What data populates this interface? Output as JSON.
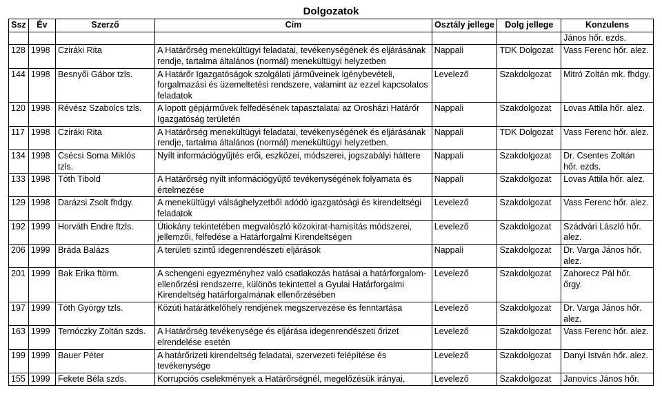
{
  "title": "Dolgozatok",
  "columns": [
    "Ssz",
    "Év",
    "Szerző",
    "Cím",
    "Osztály jellege",
    "Dolg jellege",
    "Konzulens"
  ],
  "top_konzulens": "János hőr. ezds.",
  "rows": [
    {
      "ssz": "128",
      "ev": "1998",
      "szerzo": "Cziráki Rita",
      "cim": "A Határőrség menekültügyi feladatai, tevékenységének és eljárásának rendje, tartalma általános (normál) menekültügyi helyzetben",
      "osztaly": "Nappali",
      "dolg": "TDK Dolgozat",
      "konzulens": "Vass Ferenc hőr. alez."
    },
    {
      "ssz": "144",
      "ev": "1998",
      "szerzo": "Besnyői Gábor tzls.",
      "cim": "A Határőr Igazgatóságok szolgálati járműveinek igénybevételi, forgalmazási és üzemeltetési rendszere, valamint az ezzel kapcsolatos feladatok",
      "osztaly": "Levelező",
      "dolg": "Szakdolgozat",
      "konzulens": "Mitró Zoltán mk. fhdgy."
    },
    {
      "ssz": "120",
      "ev": "1998",
      "szerzo": "Révész Szabolcs tzls.",
      "cim": "A lopott gépjárművek felfedésének tapasztalatai az Orosházi Határőr Igazgatóság területén",
      "osztaly": "Nappali",
      "dolg": "Szakdolgozat",
      "konzulens": "Lovas Attila hőr. alez."
    },
    {
      "ssz": "117",
      "ev": "1998",
      "szerzo": "Cziráki Rita",
      "cim": "A Határőrség menekültügyi feladatai, tevékenységének és eljárásának rendje, tartalma általános (normál) menekültügyi helyzetben.",
      "osztaly": "Nappali",
      "dolg": "TDK Dolgozat",
      "konzulens": "Vass Ferenc hőr. alez."
    },
    {
      "ssz": "134",
      "ev": "1998",
      "szerzo": "Csécsi Soma Miklós tzls.",
      "cim": "Nyílt információgyűjtés erői, eszközei, módszerei, jogszabályi háttere",
      "osztaly": "Nappali",
      "dolg": "Szakdolgozat",
      "konzulens": "Dr. Csentes Zoltán hőr. ezds."
    },
    {
      "ssz": "133",
      "ev": "1998",
      "szerzo": "Tóth Tibold",
      "cim": "A Határőrség nyílt információgyűjtő tevékenységének folyamata és értelmezése",
      "osztaly": "Nappali",
      "dolg": "Szakdolgozat",
      "konzulens": "Lovas Attila hőr. alez."
    },
    {
      "ssz": "129",
      "ev": "1998",
      "szerzo": "Darázsi Zsolt fhdgy.",
      "cim": "A menekültügyi válsághelyzetből adódó igazgatósági és kirendeltségi feladatok",
      "osztaly": "Levelező",
      "dolg": "Szakdolgozat",
      "konzulens": "Vass Ferenc hőr. alez."
    },
    {
      "ssz": "192",
      "ev": "1999",
      "szerzo": "Horváth Endre ftzls.",
      "cim": "Útiokány tekintetében megvalószló közokirat-hamisítás módszerei, jellemzői, felfedése a Határforgalmi Kirendeltségen",
      "osztaly": "Levelező",
      "dolg": "Szakdolgozat",
      "konzulens": "Szádvári László hőr. alez."
    },
    {
      "ssz": "206",
      "ev": "1999",
      "szerzo": "Bráda Balázs",
      "cim": "A területi szintű idegenrendészeti eljárások",
      "osztaly": "Nappali",
      "dolg": "Szakdolgozat",
      "konzulens": "Dr. Varga János hőr. alez."
    },
    {
      "ssz": "201",
      "ev": "1999",
      "szerzo": "Bak Erika ftörm.",
      "cim": "A schengeni egyezményhez való csatlakozás hatásai a határforgalom-ellenőrzési rendszerre, különös tekintettel a Gyulai Határforgalmi Kirendeltség határforgalmának ellenőrzésében",
      "osztaly": "Levelező",
      "dolg": "Szakdolgozat",
      "konzulens": "Zahorecz Pál hőr. őrgy."
    },
    {
      "ssz": "197",
      "ev": "1999",
      "szerzo": "Tóth György tzls.",
      "cim": "Közúti határátkelőhely rendjének megszervezése és fenntartása",
      "osztaly": "Levelező",
      "dolg": "Szakdolgozat",
      "konzulens": "Dr. Varga János hőr. alez."
    },
    {
      "ssz": "163",
      "ev": "1999",
      "szerzo": "Ternóczky Zoltán szds.",
      "cim": "A Határőrség tevékenysége és eljárása idegenrendészeti őrizet elrendelése esetén",
      "osztaly": "Levelező",
      "dolg": "Szakdolgozat",
      "konzulens": "Vass Ferenc hőr. alez."
    },
    {
      "ssz": "199",
      "ev": "1999",
      "szerzo": "Bauer Péter",
      "cim": "A határőrizeti kirendeltség feladatai, szervezeti felépítése és tevékenysége",
      "osztaly": "Levelező",
      "dolg": "Szakdolgozat",
      "konzulens": "Danyi István hőr. alez."
    },
    {
      "ssz": "155",
      "ev": "1999",
      "szerzo": "Fekete Béla szds.",
      "cim": "Korrupciós cselekmények a Határőrségnél, megelőzésük irányai,",
      "osztaly": "Levelező",
      "dolg": "Szakdolgozat",
      "konzulens": "Janovics János hőr."
    }
  ]
}
